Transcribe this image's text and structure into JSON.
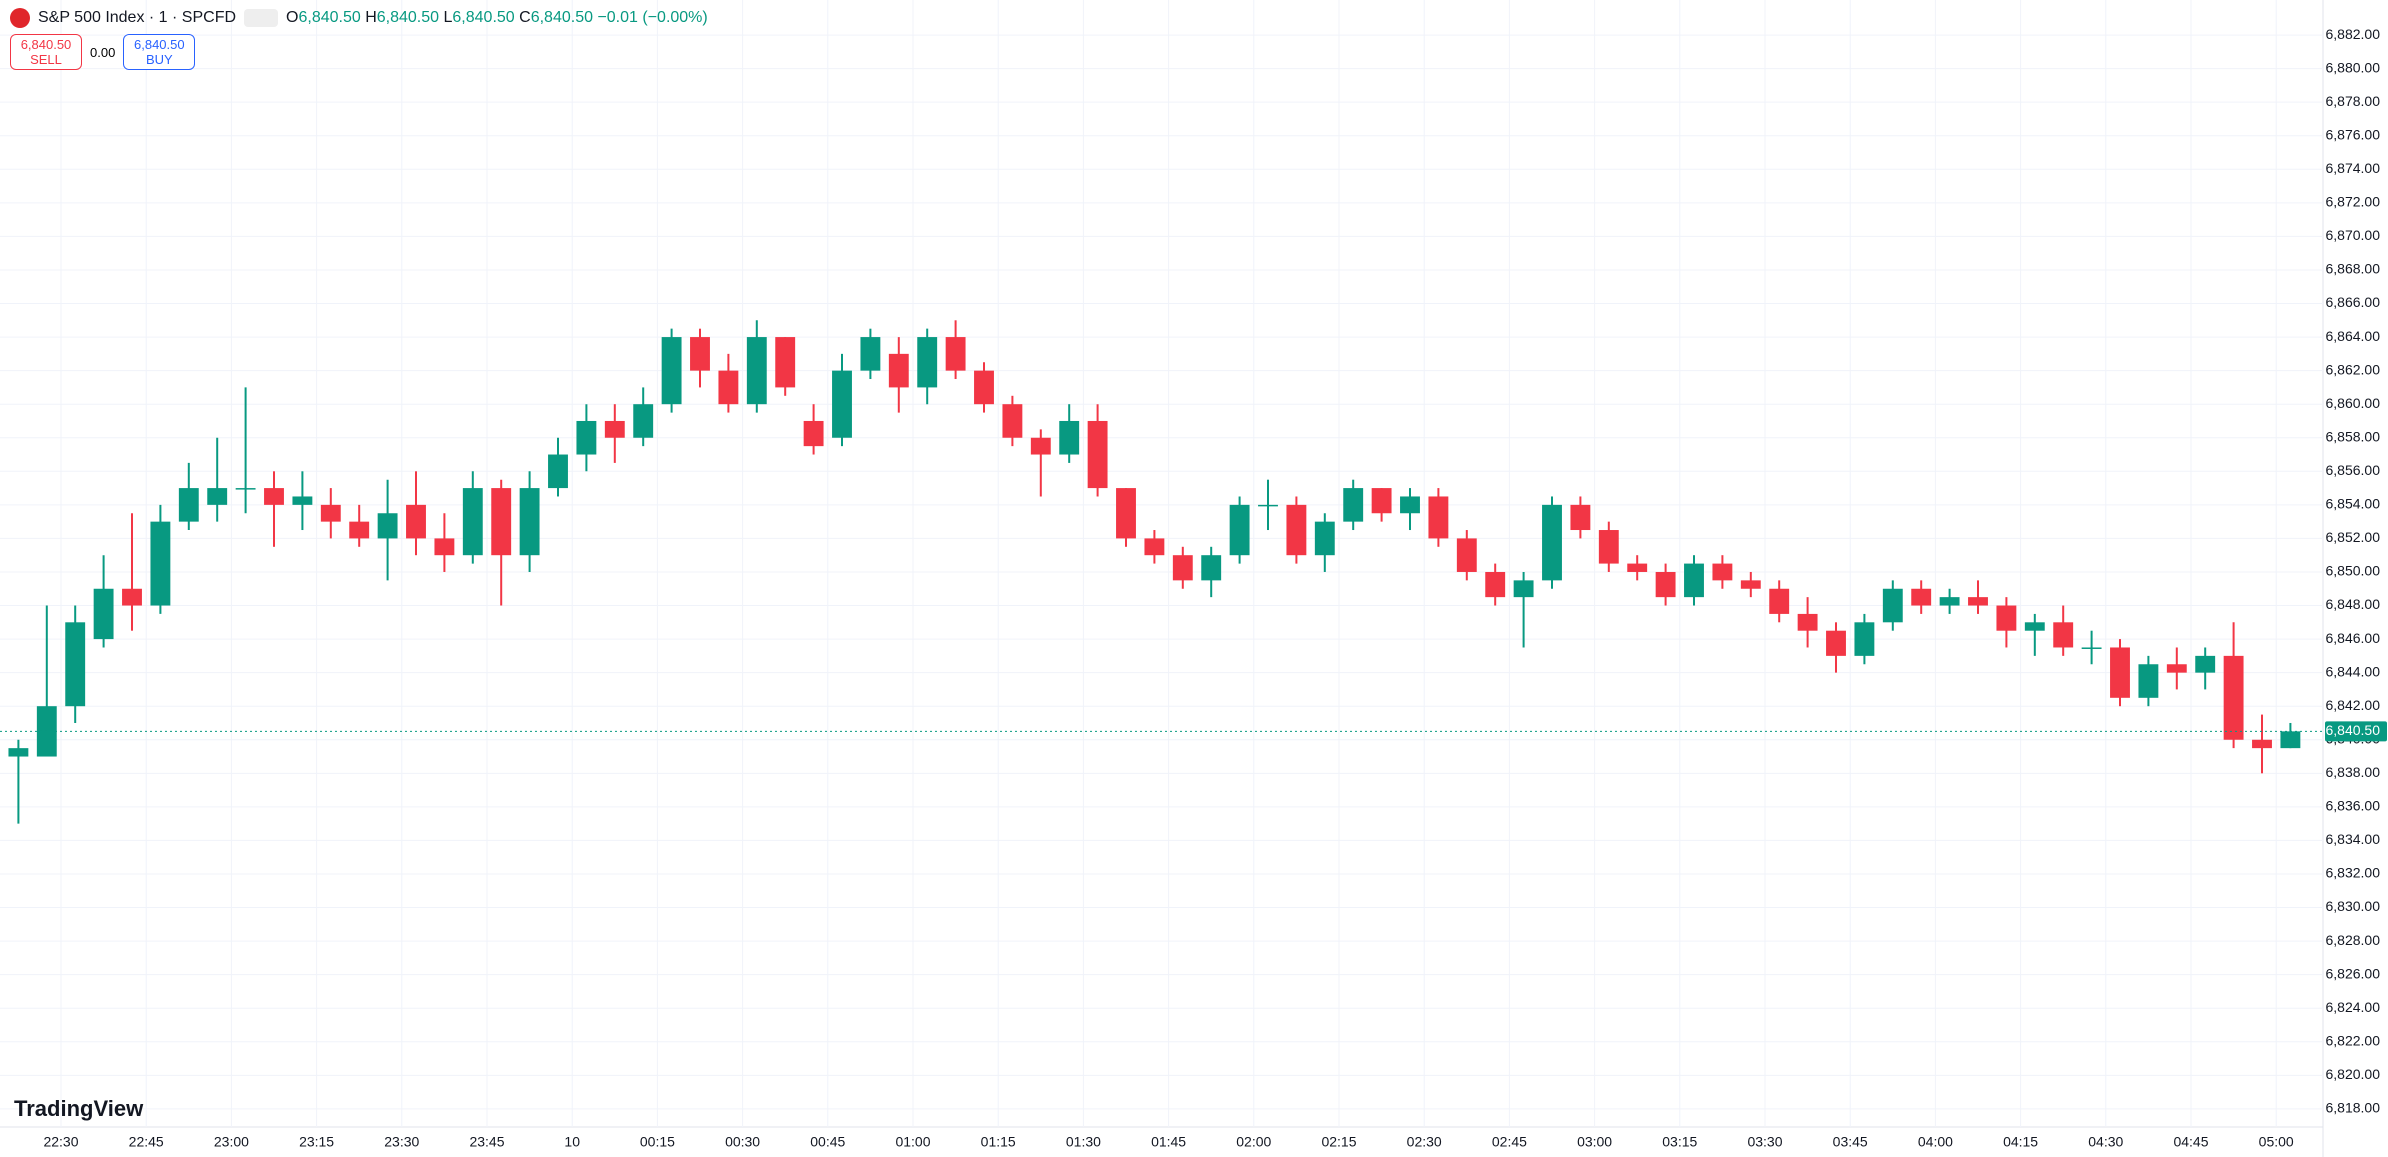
{
  "header": {
    "symbol": "S&P 500 Index · 1 · SPCFD",
    "ohlc": [
      {
        "key": "O",
        "value": "6,840.50"
      },
      {
        "key": "H",
        "value": "6,840.50"
      },
      {
        "key": "L",
        "value": "6,840.50"
      },
      {
        "key": "C",
        "value": "6,840.50"
      }
    ],
    "change": "−0.01 (−0.00%)",
    "sell_price": "6,840.50",
    "sell": "SELL",
    "spread": "0.00",
    "buy_price": "6,840.50",
    "buy": "BUY",
    "brand": "TradingView"
  },
  "chart_data": {
    "type": "candlestick",
    "up_color": "#089981",
    "down_color": "#f23645",
    "categories": [
      "22:20",
      "22:25",
      "22:30",
      "22:35",
      "22:40",
      "22:45",
      "22:50",
      "22:55",
      "23:00",
      "23:05",
      "23:10",
      "23:15",
      "23:20",
      "23:25",
      "23:30",
      "23:35",
      "23:40",
      "23:45",
      "23:50",
      "23:55",
      "00:00",
      "00:05",
      "00:10",
      "00:15",
      "00:20",
      "00:25",
      "00:30",
      "00:35",
      "00:40",
      "00:45",
      "00:50",
      "00:55",
      "01:00",
      "01:05",
      "01:10",
      "01:15",
      "01:20",
      "01:25",
      "01:30",
      "01:35",
      "01:40",
      "01:45",
      "01:50",
      "01:55",
      "02:00",
      "02:05",
      "02:10",
      "02:15",
      "02:20",
      "02:25",
      "02:30",
      "02:35",
      "02:40",
      "02:45",
      "02:50",
      "02:55",
      "03:00",
      "03:05",
      "03:10",
      "03:15",
      "03:20",
      "03:25",
      "03:30",
      "03:35",
      "03:40",
      "03:45",
      "03:50",
      "03:55",
      "04:00",
      "04:05",
      "04:10",
      "04:15",
      "04:20",
      "04:25",
      "04:30",
      "04:35",
      "04:40",
      "04:45",
      "04:50",
      "04:55",
      "05:00"
    ],
    "open": [
      6839,
      6839,
      6842,
      6846,
      6849,
      6848,
      6853,
      6854,
      6855,
      6855,
      6854,
      6854,
      6853,
      6852,
      6854,
      6852,
      6851,
      6855,
      6851,
      6855,
      6857,
      6859,
      6858,
      6860,
      6864,
      6862,
      6860,
      6864,
      6859,
      6858,
      6862,
      6863,
      6861,
      6864,
      6862,
      6860,
      6858,
      6857,
      6859,
      6855,
      6852,
      6851,
      6849.5,
      6851,
      6854,
      6854,
      6851,
      6853,
      6855,
      6853.5,
      6854.5,
      6852,
      6850,
      6848.5,
      6849.5,
      6854,
      6852.5,
      6850.5,
      6850,
      6848.5,
      6850.5,
      6849.5,
      6849,
      6847.5,
      6846.5,
      6845,
      6847,
      6849,
      6848,
      6848.5,
      6848,
      6846.5,
      6847,
      6845.5,
      6845.5,
      6842.5,
      6844.5,
      6844,
      6845,
      6840,
      6839.5
    ],
    "high": [
      6840,
      6848,
      6848,
      6851,
      6853.5,
      6854,
      6856.5,
      6858,
      6861,
      6856,
      6856,
      6855,
      6854,
      6855.5,
      6856,
      6853.5,
      6856,
      6855.5,
      6856,
      6858,
      6860,
      6860,
      6861,
      6864.5,
      6864.5,
      6863,
      6865,
      6864,
      6860,
      6863,
      6864.5,
      6864,
      6864.5,
      6865,
      6862.5,
      6860.5,
      6858.5,
      6860,
      6860,
      6855,
      6852.5,
      6851.5,
      6851.5,
      6854.5,
      6855.5,
      6854.5,
      6853.5,
      6855.5,
      6855,
      6855,
      6855,
      6852.5,
      6850.5,
      6850,
      6854.5,
      6854.5,
      6853,
      6851,
      6850.5,
      6851,
      6851,
      6850,
      6849.5,
      6848.5,
      6847,
      6847.5,
      6849.5,
      6849.5,
      6849,
      6849.5,
      6848.5,
      6847.5,
      6848,
      6846.5,
      6846,
      6845,
      6845.5,
      6845.5,
      6847,
      6841.5,
      6841
    ],
    "low": [
      6835,
      6839,
      6841,
      6845.5,
      6846.5,
      6847.5,
      6852.5,
      6853,
      6853.5,
      6851.5,
      6852.5,
      6852,
      6851.5,
      6849.5,
      6851,
      6850,
      6850.5,
      6848,
      6850,
      6854.5,
      6856,
      6856.5,
      6857.5,
      6859.5,
      6861,
      6859.5,
      6859.5,
      6860.5,
      6857,
      6857.5,
      6861.5,
      6859.5,
      6860,
      6861.5,
      6859.5,
      6857.5,
      6854.5,
      6856.5,
      6854.5,
      6851.5,
      6850.5,
      6849,
      6848.5,
      6850.5,
      6852.5,
      6850.5,
      6850,
      6852.5,
      6853,
      6852.5,
      6851.5,
      6849.5,
      6848,
      6845.5,
      6849,
      6852,
      6850,
      6849.5,
      6848,
      6848,
      6849,
      6848.5,
      6847,
      6845.5,
      6844,
      6844.5,
      6846.5,
      6847.5,
      6847.5,
      6847.5,
      6845.5,
      6845,
      6845,
      6844.5,
      6842,
      6842,
      6843,
      6843,
      6839.5,
      6838,
      6839.5
    ],
    "close": [
      6839.5,
      6842,
      6847,
      6849,
      6848,
      6853,
      6855,
      6855,
      6855,
      6854,
      6854.5,
      6853,
      6852,
      6853.5,
      6852,
      6851,
      6855,
      6851,
      6855,
      6857,
      6859,
      6858,
      6860,
      6864,
      6862,
      6860,
      6864,
      6861,
      6857.5,
      6862,
      6864,
      6861,
      6864,
      6862,
      6860,
      6858,
      6857,
      6859,
      6855,
      6852,
      6851,
      6849.5,
      6851,
      6854,
      6854,
      6851,
      6853,
      6855,
      6853.5,
      6854.5,
      6852,
      6850,
      6848.5,
      6849.5,
      6854,
      6852.5,
      6850.5,
      6850,
      6848.5,
      6850.5,
      6849.5,
      6849,
      6847.5,
      6846.5,
      6845,
      6847,
      6849,
      6848,
      6848.5,
      6848,
      6846.5,
      6847,
      6845.5,
      6845.5,
      6842.5,
      6844.5,
      6844,
      6845,
      6840,
      6839.5,
      6840.5
    ],
    "ylim": [
      6816.92,
      6884.09
    ],
    "yticks": [
      {
        "value": 6818,
        "label": "6,818.00"
      },
      {
        "value": 6820,
        "label": "6,820.00"
      },
      {
        "value": 6822,
        "label": "6,822.00"
      },
      {
        "value": 6824,
        "label": "6,824.00"
      },
      {
        "value": 6826,
        "label": "6,826.00"
      },
      {
        "value": 6828,
        "label": "6,828.00"
      },
      {
        "value": 6830,
        "label": "6,830.00"
      },
      {
        "value": 6832,
        "label": "6,832.00"
      },
      {
        "value": 6834,
        "label": "6,834.00"
      },
      {
        "value": 6836,
        "label": "6,836.00"
      },
      {
        "value": 6838,
        "label": "6,838.00"
      },
      {
        "value": 6840,
        "label": "6,840.00"
      },
      {
        "value": 6842,
        "label": "6,842.00"
      },
      {
        "value": 6844,
        "label": "6,844.00"
      },
      {
        "value": 6846,
        "label": "6,846.00"
      },
      {
        "value": 6848,
        "label": "6,848.00"
      },
      {
        "value": 6850,
        "label": "6,850.00"
      },
      {
        "value": 6852,
        "label": "6,852.00"
      },
      {
        "value": 6854,
        "label": "6,854.00"
      },
      {
        "value": 6856,
        "label": "6,856.00"
      },
      {
        "value": 6858,
        "label": "6,858.00"
      },
      {
        "value": 6860,
        "label": "6,860.00"
      },
      {
        "value": 6862,
        "label": "6,862.00"
      },
      {
        "value": 6864,
        "label": "6,864.00"
      },
      {
        "value": 6866,
        "label": "6,866.00"
      },
      {
        "value": 6868,
        "label": "6,868.00"
      },
      {
        "value": 6870,
        "label": "6,870.00"
      },
      {
        "value": 6872,
        "label": "6,872.00"
      },
      {
        "value": 6874,
        "label": "6,874.00"
      },
      {
        "value": 6876,
        "label": "6,876.00"
      },
      {
        "value": 6878,
        "label": "6,878.00"
      },
      {
        "value": 6880,
        "label": "6,880.00"
      },
      {
        "value": 6882,
        "label": "6,882.00"
      }
    ],
    "xticks": [
      "22:30",
      "22:45",
      "23:00",
      "23:15",
      "23:30",
      "23:45",
      {
        "value": "00:00",
        "label": "10"
      },
      "00:15",
      "00:30",
      "00:45",
      "01:00",
      "01:15",
      "01:30",
      "01:45",
      "02:00",
      "02:15",
      "02:30",
      "02:45",
      "03:00",
      "03:15",
      "03:30",
      "03:45",
      "04:00",
      "04:15",
      "04:30",
      "04:45",
      "05:00"
    ],
    "last_price": {
      "value": 6840.5,
      "label": "6,840.50"
    },
    "grid": true
  }
}
